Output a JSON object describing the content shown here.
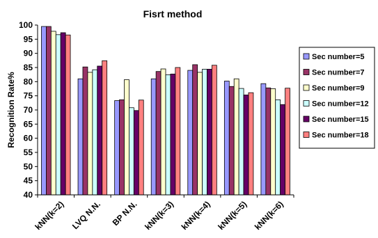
{
  "chart_data": {
    "type": "bar",
    "title": "Fisrt method",
    "xlabel": "",
    "ylabel": "Recognition Rate%",
    "ylim": [
      40,
      100
    ],
    "ytick_step": 5,
    "grid": false,
    "legend_position": "right",
    "categories": [
      "kNN(k=2)",
      "LVQ N.N.",
      "BP N.N.",
      "kNN(k=3)",
      "kNN(k=4)",
      "kNN(k=5)",
      "kNN(k=6)"
    ],
    "series": [
      {
        "name": "Sec number=5",
        "color": "#9999ff",
        "values": [
          99.5,
          81.0,
          73.3,
          81.0,
          84.0,
          80.2,
          79.3
        ]
      },
      {
        "name": "Sec number=7",
        "color": "#993366",
        "values": [
          99.5,
          85.2,
          73.6,
          83.6,
          86.0,
          78.3,
          77.8
        ]
      },
      {
        "name": "Sec number=9",
        "color": "#ffffcc",
        "values": [
          97.8,
          83.3,
          80.7,
          84.5,
          83.3,
          81.0,
          77.5
        ]
      },
      {
        "name": "Sec number=12",
        "color": "#ccffff",
        "values": [
          96.6,
          84.2,
          70.8,
          82.4,
          84.4,
          77.6,
          73.6
        ]
      },
      {
        "name": "Sec number=15",
        "color": "#660066",
        "values": [
          97.3,
          85.5,
          69.8,
          82.7,
          84.4,
          75.3,
          71.9
        ]
      },
      {
        "name": "Sec number=18",
        "color": "#ff8080",
        "values": [
          96.5,
          87.4,
          73.5,
          85.0,
          85.8,
          76.1,
          77.7
        ]
      }
    ]
  }
}
